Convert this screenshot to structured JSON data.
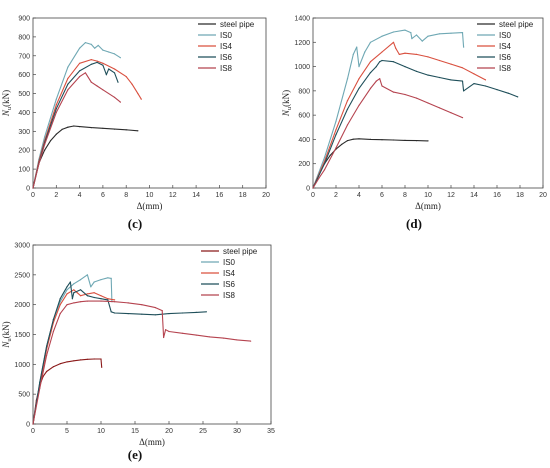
{
  "figure": {
    "panels": [
      {
        "caption": "(c)",
        "chart_data": {
          "type": "line",
          "xlabel": "Δ(mm)",
          "ylabel": "Nu(kN)",
          "ylabel_main": "N",
          "ylabel_sub": "u",
          "ylabel_unit": "(kN)",
          "xlim": [
            0,
            20
          ],
          "ylim": [
            0,
            900
          ],
          "xticks": [
            0,
            2,
            4,
            6,
            8,
            10,
            12,
            14,
            16,
            18,
            20
          ],
          "yticks": [
            0,
            100,
            200,
            300,
            400,
            500,
            600,
            700,
            800,
            900
          ],
          "legend_position": "top-right",
          "series": [
            {
              "name": "steel pipe",
              "color": "#2b2b2b",
              "x": [
                0,
                0.5,
                1,
                1.5,
                2,
                2.5,
                3,
                3.5,
                4,
                5,
                6,
                7,
                8,
                9
              ],
              "y": [
                0,
                130,
                200,
                250,
                285,
                310,
                322,
                328,
                325,
                320,
                316,
                312,
                308,
                303
              ]
            },
            {
              "name": "IS0",
              "color": "#6fa8b4",
              "x": [
                0,
                0.5,
                1,
                2,
                3,
                4,
                4.5,
                5,
                5.3,
                5.6,
                6,
                6.5,
                7,
                7.5
              ],
              "y": [
                0,
                150,
                270,
                470,
                640,
                740,
                770,
                760,
                740,
                755,
                730,
                720,
                710,
                690
              ]
            },
            {
              "name": "IS4",
              "color": "#d9503f",
              "x": [
                0,
                0.5,
                1,
                2,
                3,
                4,
                5,
                5.5,
                6,
                7,
                8,
                8.5,
                9,
                9.3
              ],
              "y": [
                0,
                140,
                250,
                440,
                580,
                660,
                680,
                672,
                660,
                630,
                590,
                550,
                500,
                470
              ]
            },
            {
              "name": "IS6",
              "color": "#1f4f5a",
              "x": [
                0,
                0.5,
                1,
                2,
                3,
                4,
                5,
                5.5,
                6,
                6.3,
                6.5,
                7,
                7.3
              ],
              "y": [
                0,
                130,
                240,
                420,
                550,
                620,
                655,
                665,
                650,
                600,
                630,
                610,
                560
              ]
            },
            {
              "name": "IS8",
              "color": "#b5434f",
              "x": [
                0,
                0.5,
                1,
                2,
                3,
                4,
                4.5,
                5,
                5.5,
                6,
                7,
                7.5
              ],
              "y": [
                0,
                125,
                230,
                400,
                520,
                590,
                610,
                560,
                540,
                520,
                480,
                455
              ]
            }
          ]
        }
      },
      {
        "caption": "(d)",
        "chart_data": {
          "type": "line",
          "xlabel": "Δ(mm)",
          "ylabel": "Nu(kN)",
          "ylabel_main": "N",
          "ylabel_sub": "u",
          "ylabel_unit": "(kN)",
          "xlim": [
            0,
            20
          ],
          "ylim": [
            0,
            1400
          ],
          "xticks": [
            0,
            2,
            4,
            6,
            8,
            10,
            12,
            14,
            16,
            18,
            20
          ],
          "yticks": [
            0,
            200,
            400,
            600,
            800,
            1000,
            1200,
            1400
          ],
          "legend_position": "top-right",
          "series": [
            {
              "name": "steel pipe",
              "color": "#2b2b2b",
              "x": [
                0,
                0.5,
                1,
                1.5,
                2,
                2.5,
                3,
                3.5,
                4,
                5,
                6,
                7,
                8,
                9,
                10
              ],
              "y": [
                0,
                120,
                200,
                270,
                320,
                360,
                390,
                402,
                405,
                400,
                398,
                395,
                392,
                390,
                388
              ]
            },
            {
              "name": "IS0",
              "color": "#6fa8b4",
              "x": [
                0,
                1,
                2,
                3,
                3.5,
                3.8,
                4,
                4.5,
                5,
                6,
                7,
                8,
                8.5,
                8.6,
                9,
                9.5,
                10,
                11,
                12,
                13,
                13.1
              ],
              "y": [
                0,
                250,
                550,
                900,
                1100,
                1160,
                1000,
                1120,
                1200,
                1250,
                1285,
                1300,
                1280,
                1230,
                1260,
                1210,
                1250,
                1270,
                1275,
                1280,
                1160
              ]
            },
            {
              "name": "IS4",
              "color": "#d9503f",
              "x": [
                0,
                1,
                2,
                3,
                4,
                5,
                6,
                7,
                7.2,
                7.5,
                8,
                9,
                10,
                11,
                12,
                13,
                14,
                15
              ],
              "y": [
                0,
                220,
                480,
                720,
                900,
                1040,
                1120,
                1200,
                1150,
                1100,
                1110,
                1100,
                1080,
                1050,
                1020,
                990,
                940,
                890
              ]
            },
            {
              "name": "IS6",
              "color": "#1f4f5a",
              "x": [
                0,
                1,
                2,
                3,
                4,
                5,
                5.5,
                5.8,
                6,
                7,
                8,
                9,
                10,
                11,
                12,
                13,
                13.1,
                14,
                15,
                16,
                17,
                17.8
              ],
              "y": [
                0,
                200,
                440,
                650,
                820,
                950,
                1000,
                1040,
                1050,
                1040,
                1000,
                960,
                930,
                910,
                890,
                880,
                800,
                860,
                840,
                810,
                780,
                750
              ]
            },
            {
              "name": "IS8",
              "color": "#b5434f",
              "x": [
                0,
                0.5,
                1,
                2,
                3,
                4,
                5,
                5.5,
                5.8,
                6,
                7,
                8,
                9,
                10,
                11,
                12,
                13
              ],
              "y": [
                0,
                80,
                150,
                330,
                520,
                680,
                820,
                880,
                900,
                840,
                790,
                770,
                740,
                700,
                660,
                620,
                580
              ]
            }
          ]
        }
      },
      {
        "caption": "(e)",
        "chart_data": {
          "type": "line",
          "xlabel": "Δ(mm)",
          "ylabel": "Nu(kN)",
          "ylabel_main": "N",
          "ylabel_sub": "u",
          "ylabel_unit": "(kN)",
          "xlim": [
            0,
            35
          ],
          "ylim": [
            0,
            3000
          ],
          "xticks": [
            0,
            5,
            10,
            15,
            20,
            25,
            30,
            35
          ],
          "yticks": [
            0,
            500,
            1000,
            1500,
            2000,
            2500,
            3000
          ],
          "legend_position": "top-right",
          "series": [
            {
              "name": "steel pipe",
              "color": "#8b1a1a",
              "x": [
                0,
                0.5,
                1,
                1.5,
                2,
                3,
                4,
                5,
                6,
                7,
                8,
                9,
                10,
                10.1
              ],
              "y": [
                0,
                400,
                650,
                800,
                880,
                960,
                1010,
                1040,
                1060,
                1075,
                1085,
                1090,
                1090,
                950
              ]
            },
            {
              "name": "IS0",
              "color": "#6fa8b4",
              "x": [
                0,
                1,
                2,
                3,
                4,
                5,
                6,
                7,
                8,
                8.5,
                9,
                10,
                11,
                11.5,
                11.6
              ],
              "y": [
                0,
                700,
                1300,
                1750,
                2050,
                2250,
                2350,
                2420,
                2500,
                2300,
                2380,
                2420,
                2450,
                2440,
                2050
              ]
            },
            {
              "name": "IS4",
              "color": "#d9503f",
              "x": [
                0,
                1,
                2,
                3,
                4,
                5,
                6,
                6.5,
                7,
                8,
                9,
                10,
                11,
                12
              ],
              "y": [
                0,
                650,
                1250,
                1700,
                2000,
                2180,
                2250,
                2200,
                2150,
                2180,
                2200,
                2150,
                2100,
                2080
              ]
            },
            {
              "name": "IS6",
              "color": "#1f4f5a",
              "x": [
                0,
                1,
                2,
                3,
                4,
                5,
                5.5,
                5.8,
                6,
                7,
                8,
                9,
                10,
                11,
                11.5,
                12,
                14,
                16,
                18,
                20,
                22,
                24,
                25.5
              ],
              "y": [
                0,
                700,
                1300,
                1750,
                2100,
                2300,
                2380,
                2100,
                2200,
                2250,
                2150,
                2120,
                2100,
                2080,
                1880,
                1860,
                1850,
                1840,
                1830,
                1850,
                1860,
                1870,
                1880
              ]
            },
            {
              "name": "IS8",
              "color": "#b5434f",
              "x": [
                0,
                1,
                2,
                3,
                4,
                5,
                6,
                7,
                8,
                10,
                12,
                14,
                16,
                18,
                19,
                19.2,
                19.5,
                20,
                22,
                24,
                26,
                28,
                30,
                32
              ],
              "y": [
                0,
                600,
                1150,
                1550,
                1850,
                2000,
                2030,
                2050,
                2060,
                2060,
                2050,
                2030,
                2000,
                1950,
                1900,
                1450,
                1580,
                1550,
                1520,
                1490,
                1460,
                1440,
                1410,
                1390
              ]
            }
          ]
        }
      }
    ]
  }
}
